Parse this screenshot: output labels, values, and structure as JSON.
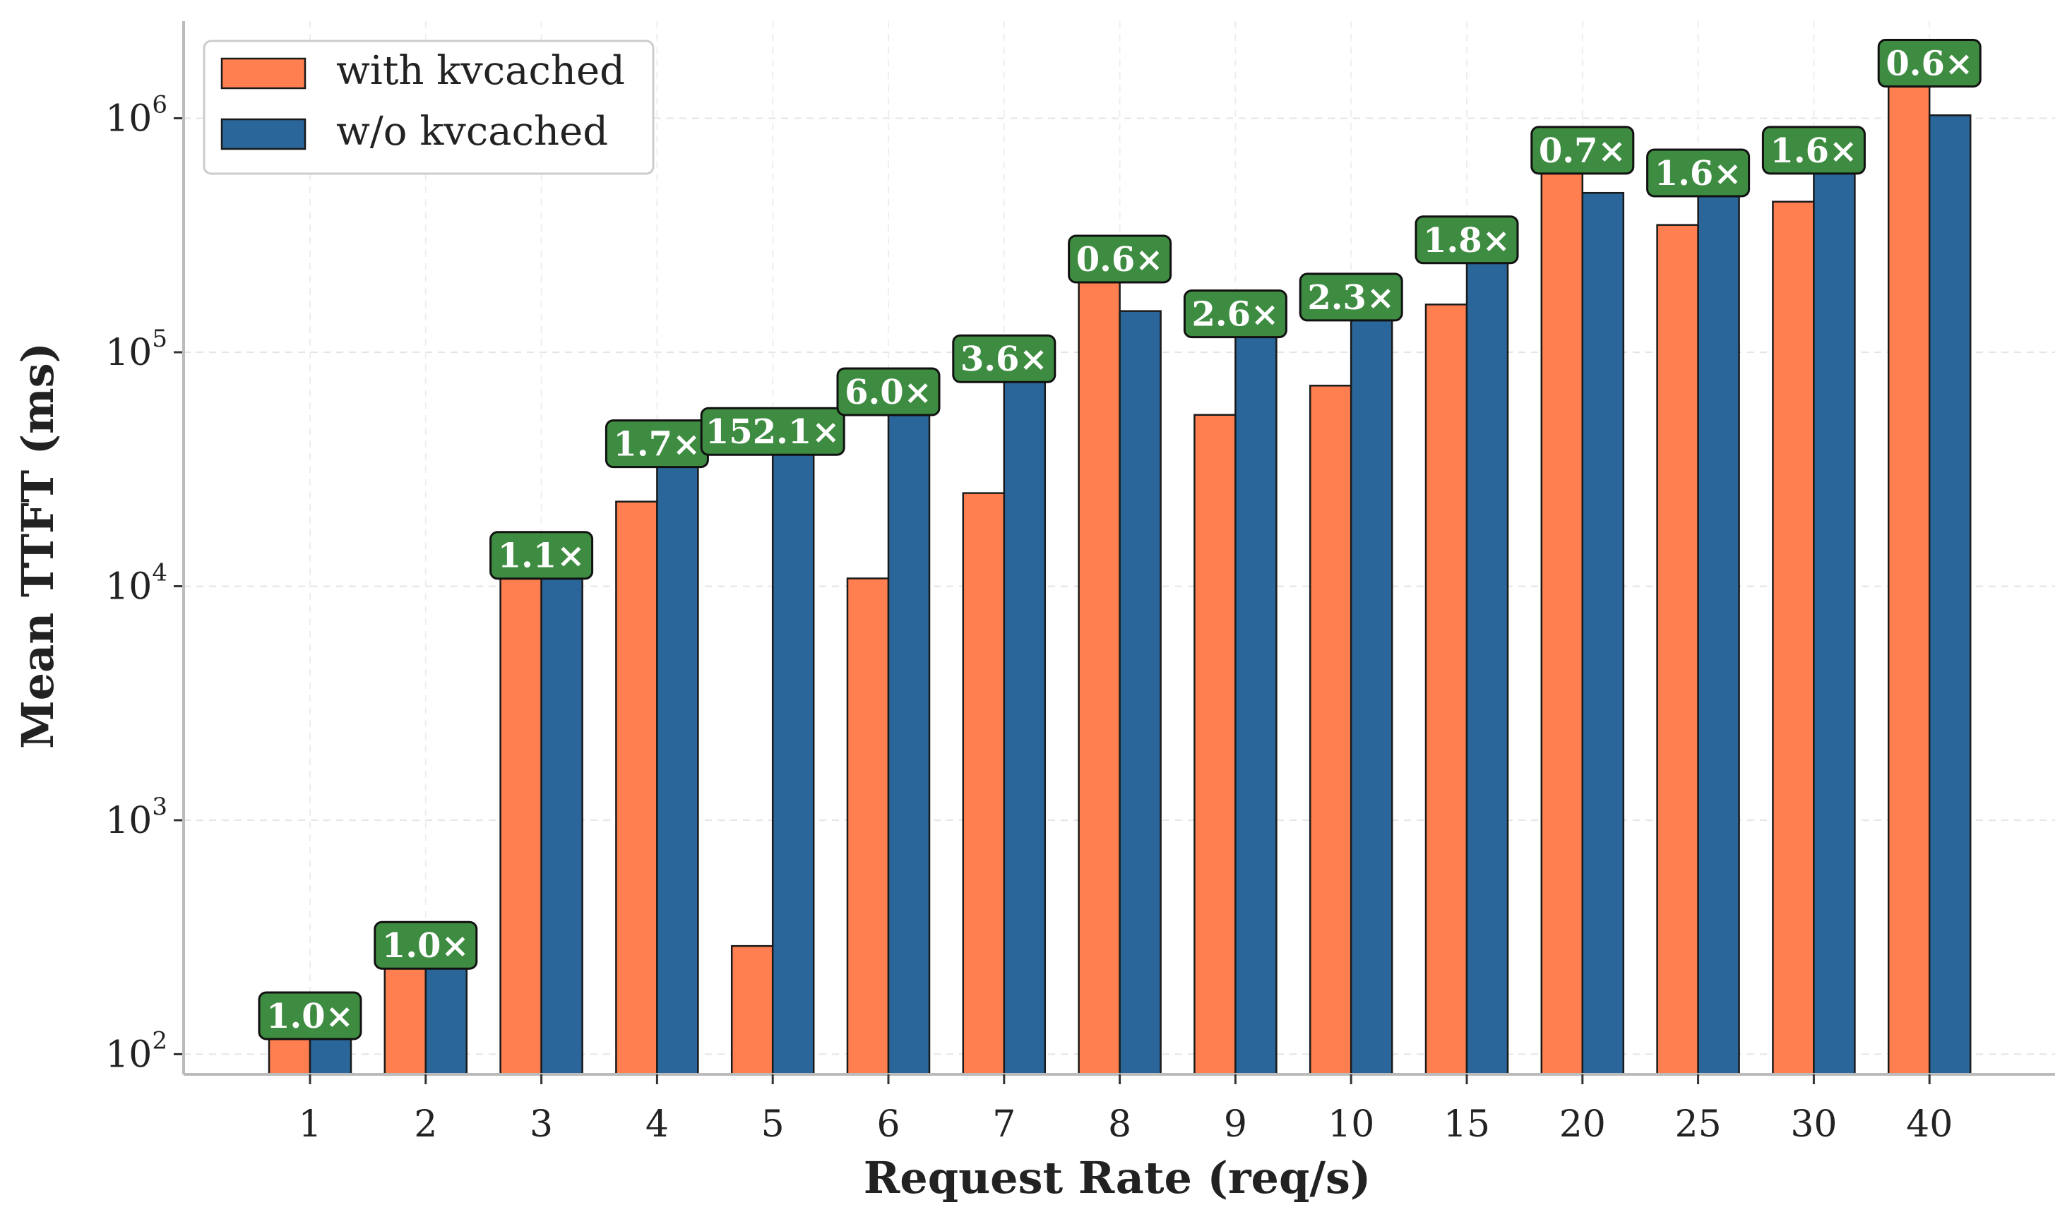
{
  "chart_data": {
    "type": "bar",
    "categories": [
      "1",
      "2",
      "3",
      "4",
      "5",
      "6",
      "7",
      "8",
      "9",
      "10",
      "15",
      "20",
      "25",
      "30",
      "40"
    ],
    "series": [
      {
        "name": "with kvcached",
        "color": "#ff7f50",
        "values": [
          140,
          280,
          11800,
          23000,
          290,
          10800,
          25000,
          240000,
          54000,
          72000,
          160000,
          700000,
          350000,
          440000,
          1650000
        ]
      },
      {
        "name": "w/o kvcached",
        "color": "#2a6699",
        "values": [
          140,
          280,
          13000,
          39000,
          44000,
          65000,
          90000,
          150000,
          140000,
          165000,
          290000,
          480000,
          560000,
          700000,
          1030000
        ]
      }
    ],
    "annotations": [
      "1.0×",
      "1.0×",
      "1.1×",
      "1.7×",
      "152.1×",
      "6.0×",
      "3.6×",
      "0.6×",
      "2.6×",
      "2.3×",
      "1.8×",
      "0.7×",
      "1.6×",
      "1.6×",
      "0.6×"
    ],
    "annotation_color": "#3e8c41",
    "xlabel": "Request Rate (req/s)",
    "ylabel": "Mean TTFT (ms)",
    "yscale": "log",
    "ylim": [
      82,
      2600000
    ],
    "yticks": [
      {
        "base": "10",
        "exp": "2"
      },
      {
        "base": "10",
        "exp": "3"
      },
      {
        "base": "10",
        "exp": "4"
      },
      {
        "base": "10",
        "exp": "5"
      },
      {
        "base": "10",
        "exp": "6"
      }
    ],
    "grid": true,
    "legend_position": "top-left"
  }
}
